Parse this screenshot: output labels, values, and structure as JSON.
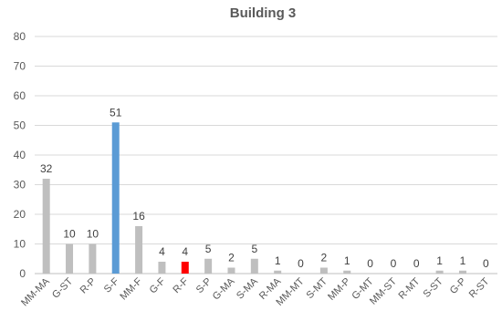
{
  "chart_data": {
    "type": "bar",
    "title": "Building 3",
    "xlabel": "",
    "ylabel": "",
    "ylim": [
      0,
      80
    ],
    "yticks": [
      0,
      10,
      20,
      30,
      40,
      50,
      60,
      70,
      80
    ],
    "grid": true,
    "legend": "none",
    "categories": [
      "MM-MA",
      "G-ST",
      "R-P",
      "S-F",
      "MM-F",
      "G-F",
      "R-F",
      "S-P",
      "G-MA",
      "S-MA",
      "R-MA",
      "MM-MT",
      "S-MT",
      "MM-P",
      "G-MT",
      "MM-ST",
      "R-MT",
      "S-ST",
      "G-P",
      "R-ST"
    ],
    "values": [
      32,
      10,
      10,
      51,
      16,
      4,
      4,
      5,
      2,
      5,
      1,
      0,
      2,
      1,
      0,
      0,
      0,
      1,
      1,
      0
    ],
    "colors": {
      "default": "#bfbfbf",
      "highlight_blue": "#5b9bd5",
      "highlight_red": "#ff0000"
    },
    "bar_colors": [
      "default",
      "default",
      "default",
      "highlight_blue",
      "default",
      "default",
      "highlight_red",
      "default",
      "default",
      "default",
      "default",
      "default",
      "default",
      "default",
      "default",
      "default",
      "default",
      "default",
      "default",
      "default"
    ]
  }
}
